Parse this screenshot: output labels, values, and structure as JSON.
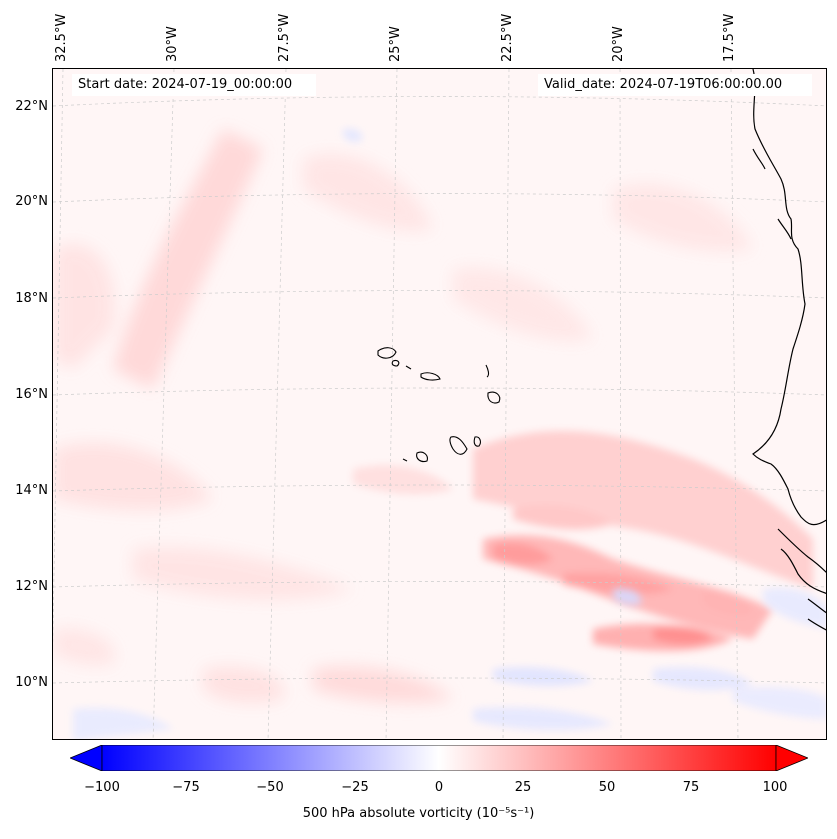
{
  "map": {
    "start_date": "Start date: 2024-07-19_00:00:00",
    "valid_date": "Valid_date: 2024-07-19T06:00:00.00",
    "longitude_labels": [
      "32.5°W",
      "30°W",
      "27.5°W",
      "25°W",
      "22.5°W",
      "20°W",
      "17.5°W"
    ],
    "latitude_labels": [
      "22°N",
      "20°N",
      "18°N",
      "16°N",
      "14°N",
      "12°N",
      "10°N"
    ],
    "colorbar": {
      "ticks": [
        "−100",
        "−75",
        "−50",
        "−25",
        "0",
        "25",
        "50",
        "75",
        "100"
      ],
      "label": "500 hPa absolute vorticity (10⁻⁵s⁻¹)",
      "min_color": "#0000ff",
      "mid_color": "#ffffff",
      "max_color": "#ff0000"
    },
    "coastline_color": "#000000",
    "gridline_color": "#cccccc"
  }
}
